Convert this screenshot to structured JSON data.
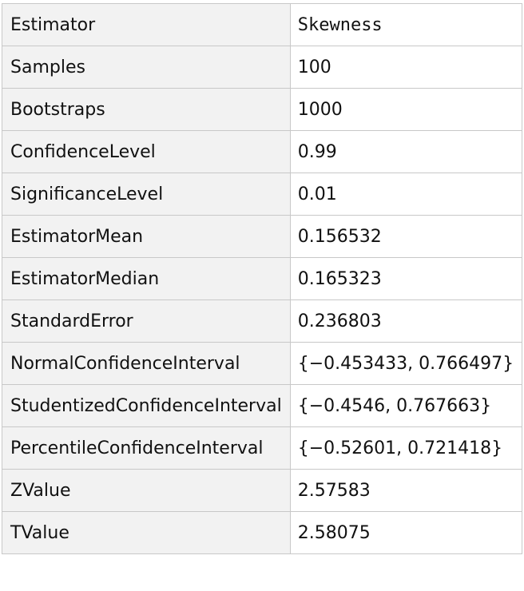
{
  "table": {
    "rows": [
      [
        "Estimator",
        "Skewness"
      ],
      [
        "Samples",
        "100"
      ],
      [
        "Bootstraps",
        "1000"
      ],
      [
        "ConfidenceLevel",
        "0.99"
      ],
      [
        "SignificanceLevel",
        "0.01"
      ],
      [
        "EstimatorMean",
        "0.156532"
      ],
      [
        "EstimatorMedian",
        "0.165323"
      ],
      [
        "StandardError",
        "0.236803"
      ],
      [
        "NormalConfidenceInterval",
        "{−0.453433, 0.766497}"
      ],
      [
        "StudentizedConfidenceInterval",
        "{−0.4546, 0.767663}"
      ],
      [
        "PercentileConfidenceInterval",
        "{−0.52601, 0.721418}"
      ],
      [
        "ZValue",
        "2.57583"
      ],
      [
        "TValue",
        "2.58075"
      ]
    ]
  }
}
